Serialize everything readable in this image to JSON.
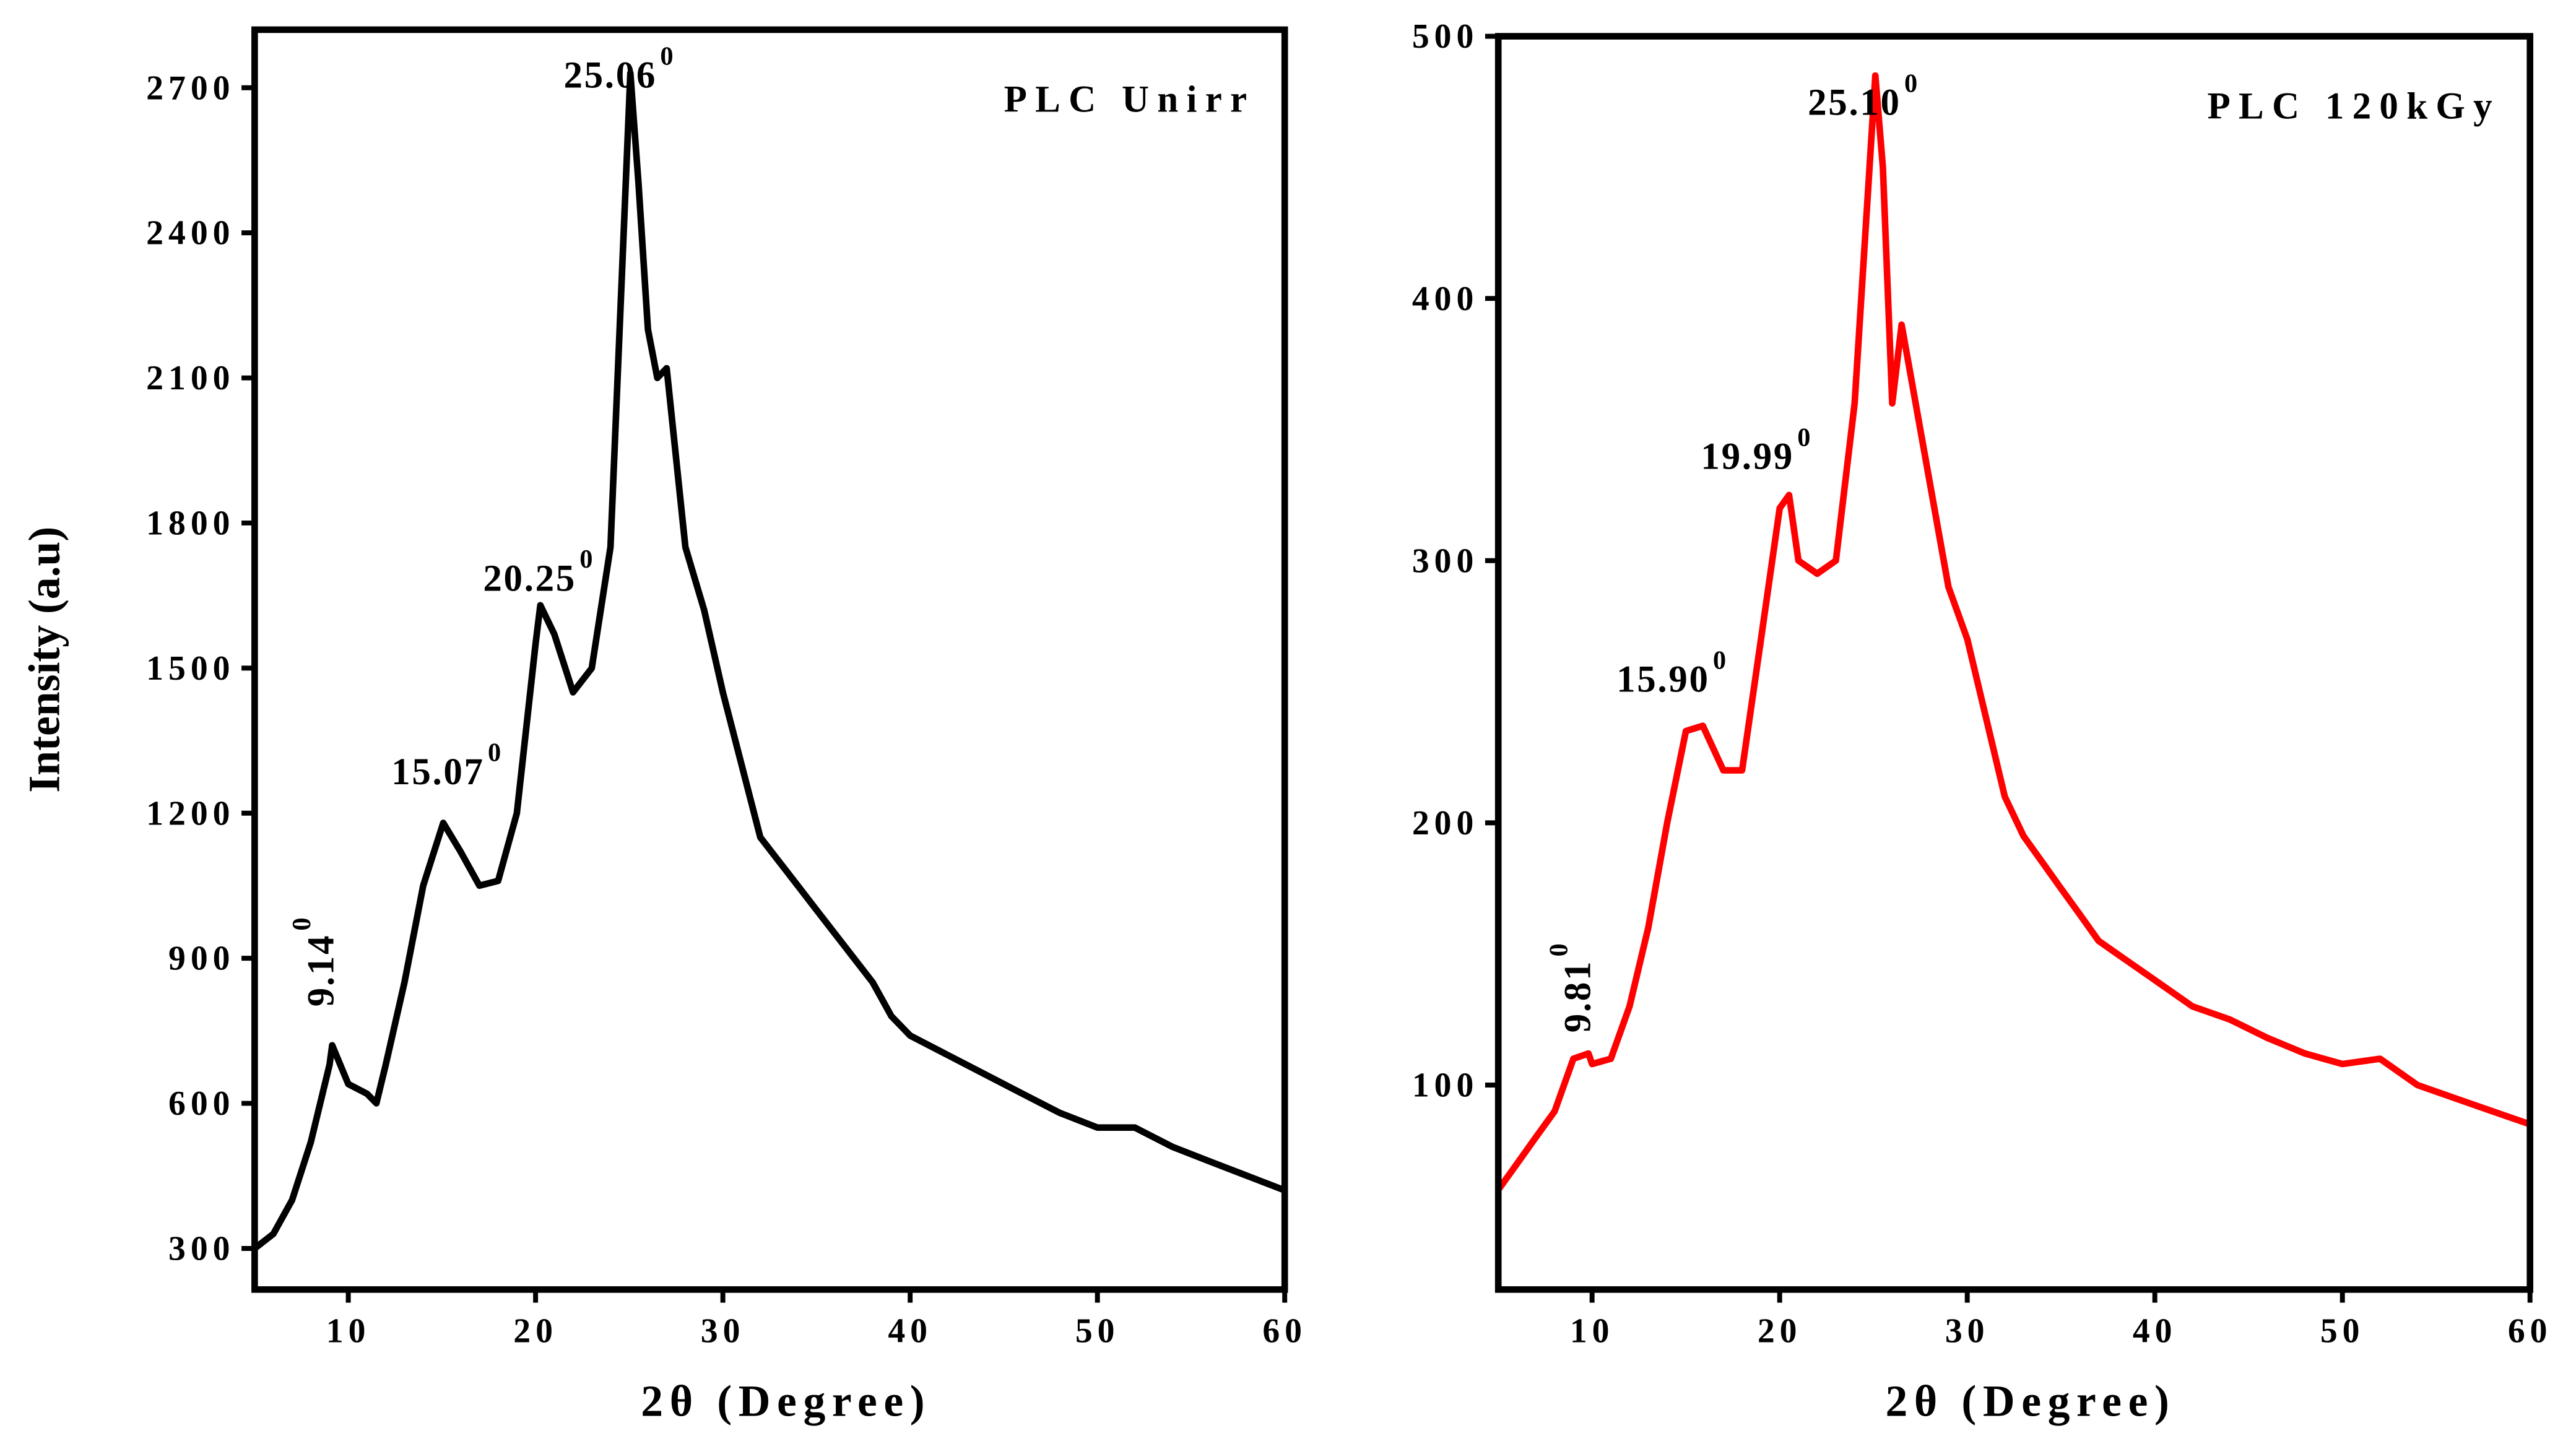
{
  "chart_data": [
    {
      "type": "line",
      "title": "PLC Unirr",
      "xlabel": "2θ (Degree)",
      "ylabel": "Intensity (a.u)",
      "x": [
        5,
        6,
        7,
        8,
        9,
        9.14,
        10,
        11,
        11.5,
        12,
        13,
        14,
        15.07,
        16,
        17,
        18,
        19,
        20,
        20.25,
        21,
        22,
        23,
        24,
        25.06,
        25.5,
        26,
        26.5,
        27,
        28,
        29,
        30,
        31,
        32,
        33,
        34,
        35,
        36,
        37,
        38,
        39,
        40,
        42,
        44,
        46,
        48,
        50,
        52,
        54,
        56,
        58,
        60
      ],
      "series": [
        {
          "color": "#000000",
          "values": [
            300,
            330,
            400,
            520,
            680,
            720,
            640,
            620,
            600,
            680,
            850,
            1050,
            1180,
            1120,
            1050,
            1060,
            1200,
            1550,
            1630,
            1570,
            1450,
            1500,
            1750,
            2730,
            2500,
            2200,
            2100,
            2120,
            1750,
            1620,
            1450,
            1300,
            1150,
            1100,
            1050,
            1000,
            950,
            900,
            850,
            780,
            740,
            700,
            660,
            620,
            580,
            550,
            550,
            510,
            480,
            450,
            420
          ]
        }
      ],
      "xlim": [
        5,
        60
      ],
      "xticks": [
        10,
        20,
        30,
        40,
        50,
        60
      ],
      "ylim": [
        215,
        2820
      ],
      "yticks": [
        300,
        600,
        900,
        1200,
        1500,
        1800,
        2100,
        2400,
        2700
      ],
      "annotations": [
        {
          "label": "25.06",
          "sup": "0",
          "x": 21.5,
          "y": 2700
        },
        {
          "label": "20.25",
          "sup": "0",
          "x": 17.2,
          "y": 1660
        },
        {
          "label": "15.07",
          "sup": "0",
          "x": 12.3,
          "y": 1260
        },
        {
          "label": "9.14",
          "sup": "0",
          "x": 9.2,
          "y": 800,
          "orientation": "vertical"
        }
      ]
    },
    {
      "type": "line",
      "title": "PLC 120kGy",
      "xlabel": "2θ (Degree)",
      "x": [
        5,
        6,
        7,
        8,
        9,
        9.81,
        10,
        11,
        12,
        13,
        14,
        15,
        15.9,
        17,
        18,
        19,
        20,
        20.5,
        21,
        22,
        23,
        24,
        25.1,
        25.5,
        26,
        26.5,
        27,
        28,
        29,
        30,
        31,
        32,
        33,
        34,
        35,
        36,
        37,
        38,
        40,
        42,
        44,
        46,
        48,
        50,
        52,
        54,
        56,
        58,
        60
      ],
      "series": [
        {
          "color": "#ff0000",
          "values": [
            60,
            70,
            80,
            90,
            110,
            112,
            108,
            110,
            130,
            160,
            200,
            235,
            237,
            220,
            220,
            270,
            320,
            325,
            300,
            295,
            300,
            360,
            485,
            450,
            360,
            390,
            370,
            330,
            290,
            270,
            240,
            210,
            195,
            185,
            175,
            165,
            155,
            150,
            140,
            130,
            125,
            118,
            112,
            108,
            110,
            100,
            95,
            90,
            85
          ]
        }
      ],
      "xlim": [
        5,
        60
      ],
      "xticks": [
        10,
        20,
        30,
        40,
        50,
        60
      ],
      "ylim": [
        22,
        500
      ],
      "yticks": [
        100,
        200,
        300,
        400,
        500
      ],
      "annotations": [
        {
          "label": "25.10",
          "sup": "0",
          "x": 21.5,
          "y": 470
        },
        {
          "label": "19.99",
          "sup": "0",
          "x": 15.8,
          "y": 335
        },
        {
          "label": "15.90",
          "sup": "0",
          "x": 11.3,
          "y": 250
        },
        {
          "label": "9.81",
          "sup": "0",
          "x": 9.9,
          "y": 120,
          "orientation": "vertical"
        }
      ]
    }
  ]
}
